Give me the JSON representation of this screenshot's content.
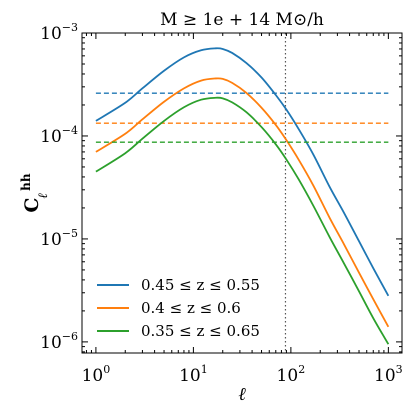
{
  "chart_data": {
    "type": "line",
    "title": "M ≥ 1e + 14 M⊙/h",
    "xlabel": "ℓ",
    "ylabel": "C",
    "ylabel_sub": "ℓ",
    "ylabel_sup": "hh",
    "xscale": "log",
    "yscale": "log",
    "xlim": [
      0.72,
      1380
    ],
    "ylim": [
      7.8e-07,
      0.001
    ],
    "x_ticks": [
      {
        "value": 1,
        "base": "10",
        "exp": "0"
      },
      {
        "value": 10,
        "base": "10",
        "exp": "1"
      },
      {
        "value": 100,
        "base": "10",
        "exp": "2"
      },
      {
        "value": 1000,
        "base": "10",
        "exp": "3"
      }
    ],
    "y_ticks": [
      {
        "value": 1e-06,
        "base": "10",
        "exp": "−6"
      },
      {
        "value": 1e-05,
        "base": "10",
        "exp": "−5"
      },
      {
        "value": 0.0001,
        "base": "10",
        "exp": "−4"
      },
      {
        "value": 0.001,
        "base": "10",
        "exp": "−3"
      }
    ],
    "vline": {
      "x": 88,
      "style": "dotted",
      "color": "#555555"
    },
    "x": [
      1,
      2,
      3,
      5,
      8,
      12,
      17,
      20,
      25,
      35,
      50,
      70,
      90,
      120,
      170,
      250,
      350,
      500,
      700,
      1000
    ],
    "series": [
      {
        "name": "0.45 ≤ z ≤ 0.55",
        "color": "#1f77b4",
        "values": [
          0.00014,
          0.00021,
          0.00029,
          0.00043,
          0.00058,
          0.00068,
          0.00071,
          0.0007,
          0.00064,
          0.00051,
          0.00037,
          0.00025,
          0.00018,
          0.000117,
          6.6e-05,
          3.2e-05,
          1.8e-05,
          9.5e-06,
          5.2e-06,
          2.8e-06
        ],
        "hline": 0.00026
      },
      {
        "name": "0.4 ≤ z ≤ 0.6",
        "color": "#ff7f0e",
        "values": [
          7e-05,
          0.000105,
          0.000145,
          0.000215,
          0.00029,
          0.000345,
          0.000362,
          0.000358,
          0.000328,
          0.000262,
          0.000188,
          0.000128,
          9.1e-05,
          5.9e-05,
          3.3e-05,
          1.6e-05,
          8.9e-06,
          4.7e-06,
          2.6e-06,
          1.4e-06
        ],
        "hline": 0.000133
      },
      {
        "name": "0.35 ≤ z ≤ 0.65",
        "color": "#2ca02c",
        "values": [
          4.5e-05,
          6.8e-05,
          9.4e-05,
          0.00014,
          0.00019,
          0.000225,
          0.000235,
          0.000232,
          0.000212,
          0.00017,
          0.000122,
          8.3e-05,
          5.9e-05,
          3.8e-05,
          2.1e-05,
          1.04e-05,
          5.8e-06,
          3.1e-06,
          1.7e-06,
          9.5e-07
        ],
        "hline": 8.7e-05
      }
    ],
    "legend_position": "lower-left",
    "grid": false
  }
}
